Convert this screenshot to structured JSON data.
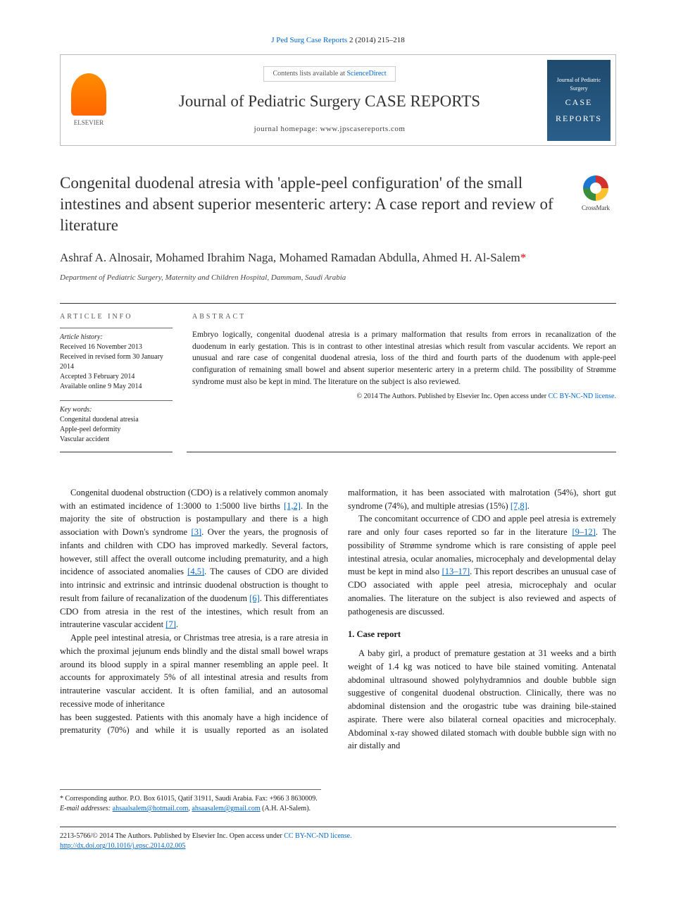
{
  "citation": {
    "journal_abbrev": "J Ped Surg Case Reports",
    "volume_pages": "2 (2014) 215–218"
  },
  "header": {
    "contents_prefix": "Contents lists available at ",
    "contents_link": "ScienceDirect",
    "journal_name": "Journal of Pediatric Surgery CASE REPORTS",
    "homepage_label": "journal homepage: ",
    "homepage_url": "www.jpscasereports.com",
    "elsevier_label": "ELSEVIER",
    "cover_text1": "Journal of Pediatric Surgery",
    "cover_text2": "CASE",
    "cover_text3": "REPORTS"
  },
  "crossmark": "CrossMark",
  "title": "Congenital duodenal atresia with 'apple-peel configuration' of the small intestines and absent superior mesenteric artery: A case report and review of literature",
  "authors": "Ashraf A. Alnosair, Mohamed Ibrahim Naga, Mohamed Ramadan Abdulla, Ahmed H. Al-Salem",
  "affiliation": "Department of Pediatric Surgery, Maternity and Children Hospital, Dammam, Saudi Arabia",
  "info": {
    "heading": "ARTICLE INFO",
    "history_label": "Article history:",
    "received": "Received 16 November 2013",
    "revised": "Received in revised form 30 January 2014",
    "accepted": "Accepted 3 February 2014",
    "online": "Available online 9 May 2014",
    "keywords_label": "Key words:",
    "kw1": "Congenital duodenal atresia",
    "kw2": "Apple-peel deformity",
    "kw3": "Vascular accident"
  },
  "abstract": {
    "heading": "ABSTRACT",
    "text": "Embryo logically, congenital duodenal atresia is a primary malformation that results from errors in recanalization of the duodenum in early gestation. This is in contrast to other intestinal atresias which result from vascular accidents. We report an unusual and rare case of congenital duodenal atresia, loss of the third and fourth parts of the duodenum with apple-peel configuration of remaining small bowel and absent superior mesenteric artery in a preterm child. The possibility of Strømme syndrome must also be kept in mind. The literature on the subject is also reviewed.",
    "copyright": "© 2014 The Authors. Published by Elsevier Inc. ",
    "license_prefix": "Open access under ",
    "license_link": "CC BY-NC-ND license."
  },
  "body": {
    "p1a": "Congenital duodenal obstruction (CDO) is a relatively common anomaly with an estimated incidence of 1:3000 to 1:5000 live births ",
    "p1b": ". In the majority the site of obstruction is postampullary and there is a high association with Down's syndrome ",
    "p1c": ". Over the years, the prognosis of infants and children with CDO has improved markedly. Several factors, however, still affect the overall outcome including prematurity, and a high incidence of associated anomalies ",
    "p1d": ". The causes of CDO are divided into intrinsic and extrinsic and intrinsic duodenal obstruction is thought to result from failure of recanalization of the duodenum ",
    "p1e": ". This differentiates CDO from atresia in the rest of the intestines, which result from an intrauterine vascular accident ",
    "p1f": ".",
    "r12": "[1,2]",
    "r3": "[3]",
    "r45": "[4,5]",
    "r6": "[6]",
    "r7": "[7]",
    "p2a": "Apple peel intestinal atresia, or Christmas tree atresia, is a rare atresia in which the proximal jejunum ends blindly and the distal small bowel wraps around its blood supply in a spiral manner resembling an apple peel. It accounts for approximately 5% of all intestinal atresia and results from intrauterine vascular accident. It is often familial, and an autosomal recessive mode of inheritance",
    "p3a": "has been suggested. Patients with this anomaly have a high incidence of prematurity (70%) and while it is usually reported as an isolated malformation, it has been associated with malrotation (54%), short gut syndrome (74%), and multiple atresias (15%) ",
    "p3b": ".",
    "r78": "[7,8]",
    "p4a": "The concomitant occurrence of CDO and apple peel atresia is extremely rare and only four cases reported so far in the literature ",
    "p4b": ". The possibility of Strømme syndrome which is rare consisting of apple peel intestinal atresia, ocular anomalies, microcephaly and developmental delay must be kept in mind also ",
    "p4c": ". This report describes an unusual case of CDO associated with apple peel atresia, microcephaly and ocular anomalies. The literature on the subject is also reviewed and aspects of pathogenesis are discussed.",
    "r912": "[9–12]",
    "r1317": "[13–17]",
    "section1": "1. Case report",
    "p5": "A baby girl, a product of premature gestation at 31 weeks and a birth weight of 1.4 kg was noticed to have bile stained vomiting. Antenatal abdominal ultrasound showed polyhydramnios and double bubble sign suggestive of congenital duodenal obstruction. Clinically, there was no abdominal distension and the orogastric tube was draining bile-stained aspirate. There were also bilateral corneal opacities and microcephaly. Abdominal x-ray showed dilated stomach with double bubble sign with no air distally and"
  },
  "footnote": {
    "corr": "* Corresponding author. P.O. Box 61015, Qatif 31911, Saudi Arabia. Fax: +966 3 8630009.",
    "email_label": "E-mail addresses: ",
    "email1": "ahsaalsalem@hotmail.com",
    "email2": "ahsaasalem@gmail.com",
    "email_suffix": " (A.H. Al-Salem)."
  },
  "footer": {
    "issn": "2213-5766/",
    "copy": "© 2014 The Authors. Published by Elsevier Inc. ",
    "license_prefix": "Open access under ",
    "license_link": "CC BY-NC-ND license.",
    "doi": "http://dx.doi.org/10.1016/j.epsc.2014.02.005"
  },
  "colors": {
    "link": "#0066cc",
    "text": "#1a1a1a",
    "rule": "#333333"
  }
}
